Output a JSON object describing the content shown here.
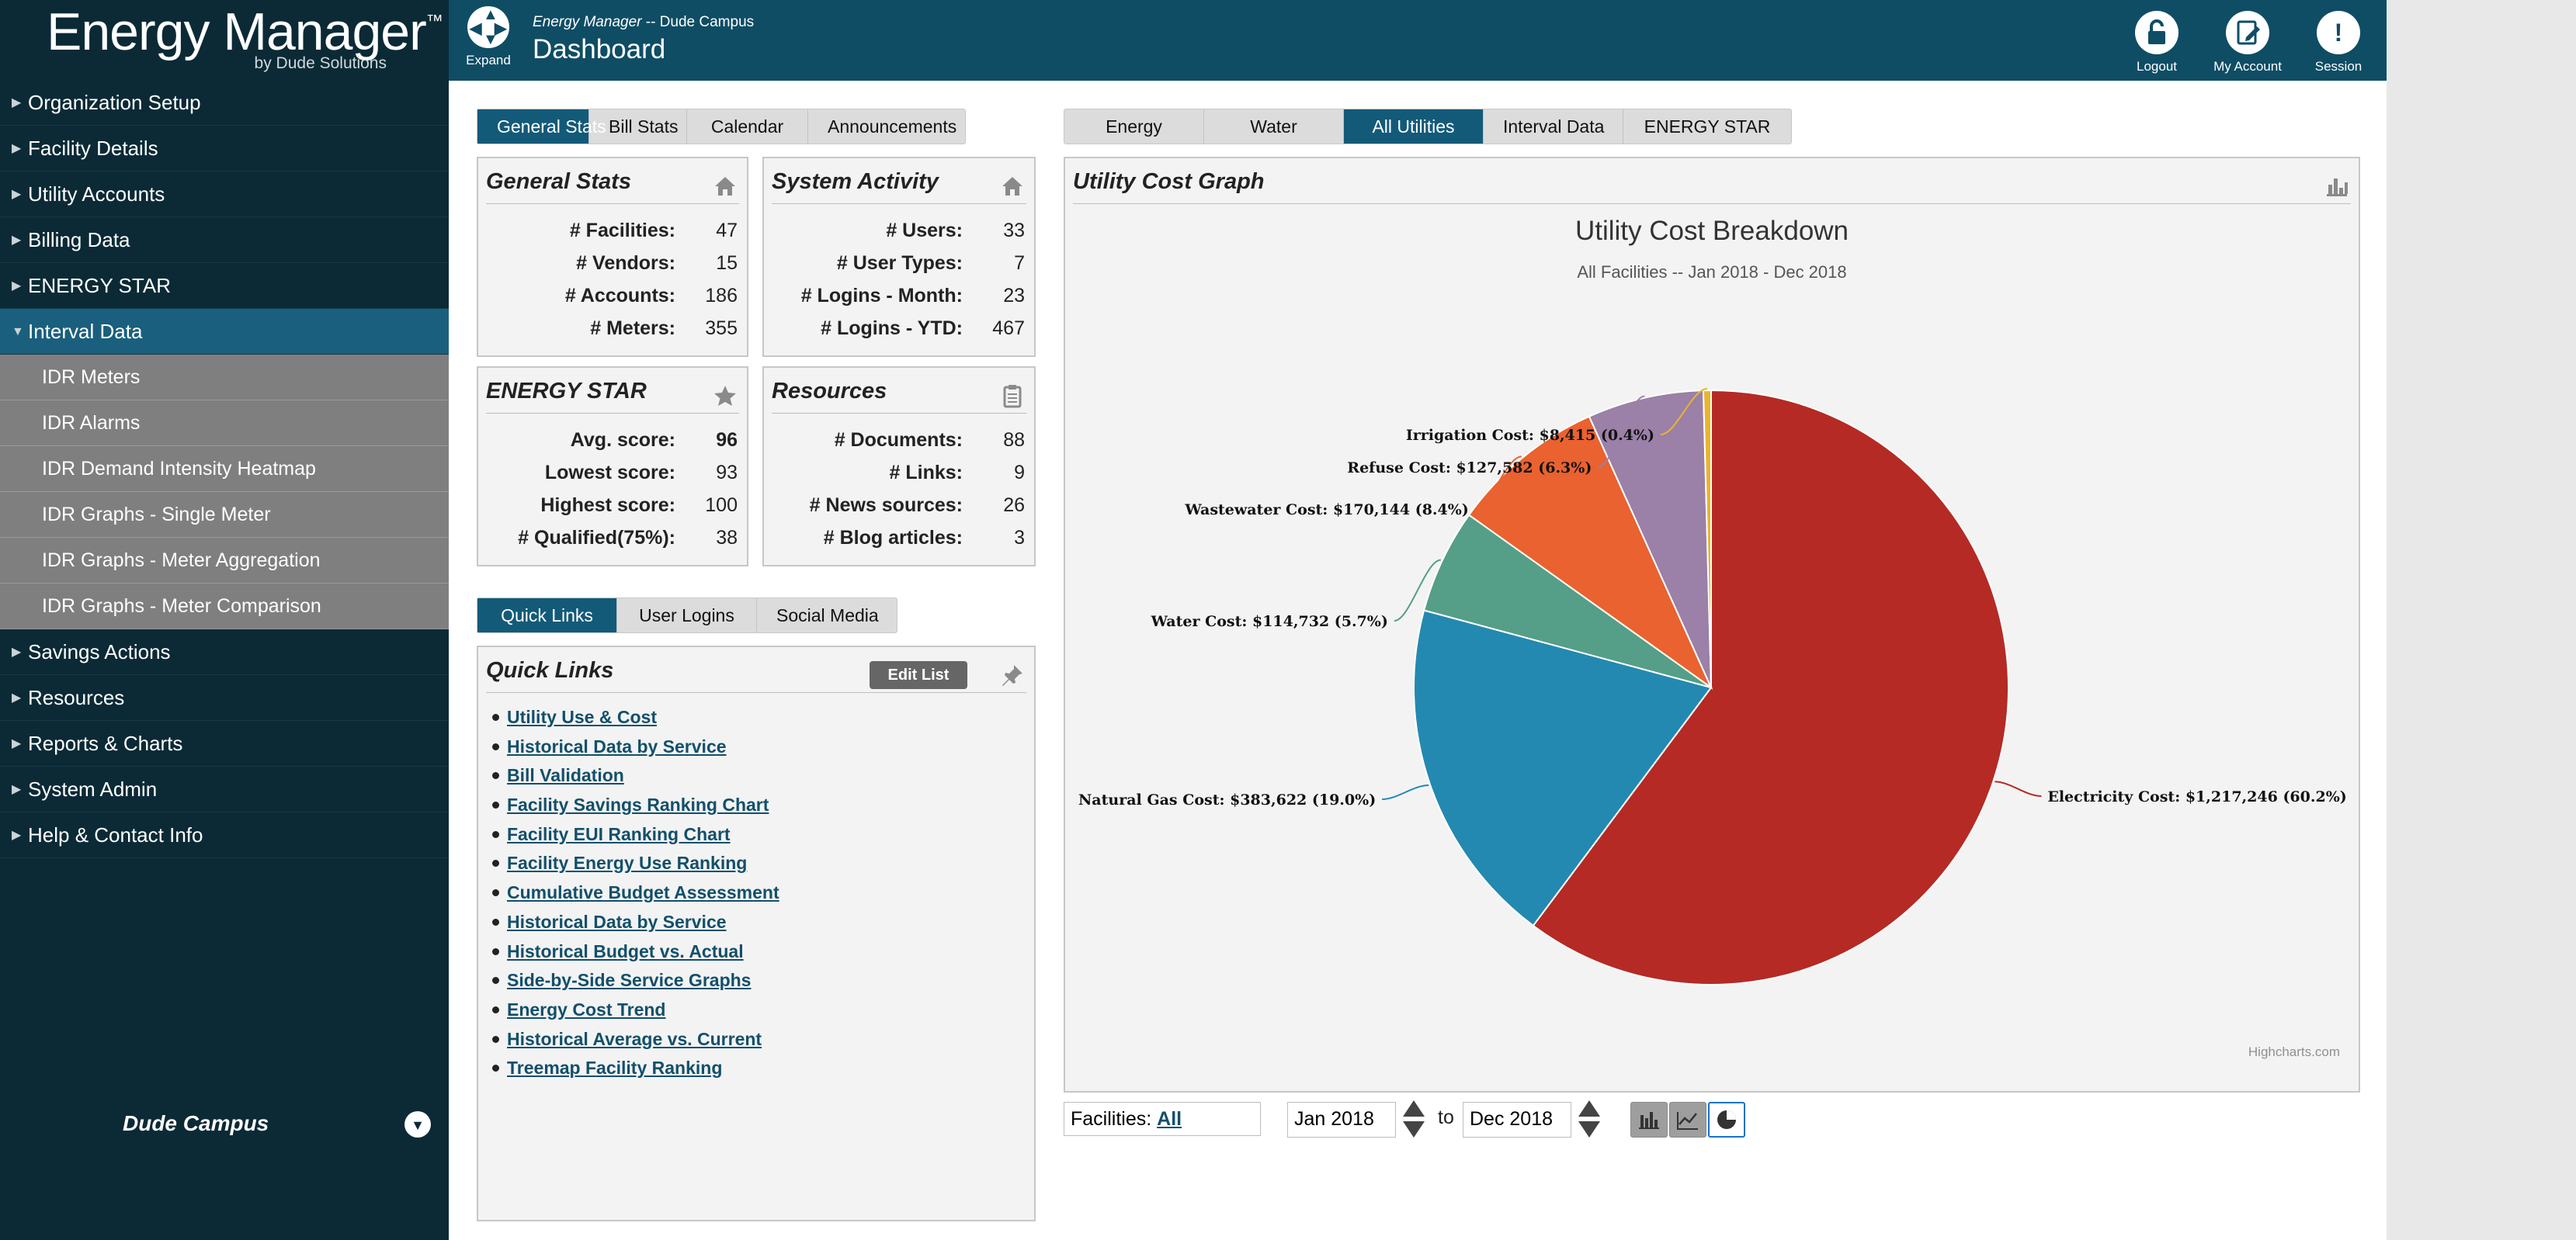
{
  "logo": {
    "brand": "Energy Manager",
    "tm": "™",
    "by": "by Dude Solutions"
  },
  "nav": [
    {
      "label": "Organization Setup",
      "type": "top"
    },
    {
      "label": "Facility Details",
      "type": "top"
    },
    {
      "label": "Utility Accounts",
      "type": "top"
    },
    {
      "label": "Billing Data",
      "type": "top"
    },
    {
      "label": "ENERGY STAR",
      "type": "top"
    },
    {
      "label": "Interval Data",
      "type": "active"
    },
    {
      "label": "IDR Meters",
      "type": "sub"
    },
    {
      "label": "IDR Alarms",
      "type": "sub"
    },
    {
      "label": "IDR Demand Intensity Heatmap",
      "type": "sub"
    },
    {
      "label": "IDR Graphs - Single Meter",
      "type": "sub"
    },
    {
      "label": "IDR Graphs - Meter Aggregation",
      "type": "sub"
    },
    {
      "label": "IDR Graphs - Meter Comparison",
      "type": "sub"
    },
    {
      "label": "Savings Actions",
      "type": "top"
    },
    {
      "label": "Resources",
      "type": "top"
    },
    {
      "label": "Reports & Charts",
      "type": "top"
    },
    {
      "label": "System Admin",
      "type": "top"
    },
    {
      "label": "Help & Contact Info",
      "type": "top"
    }
  ],
  "campus": {
    "name": "Dude Campus"
  },
  "header": {
    "expand": "Expand",
    "crumb_app": "Energy Manager",
    "crumb_rest": " -- Dude Campus",
    "title": "Dashboard",
    "logout": "Logout",
    "my_account": "My Account",
    "session": "Session"
  },
  "left_tabs": [
    "General Stats",
    "Bill Stats",
    "Calendar",
    "Announcements"
  ],
  "right_tabs": [
    "Energy",
    "Water",
    "All Utilities",
    "Interval Data",
    "ENERGY STAR"
  ],
  "link_tabs": [
    "Quick Links",
    "User Logins",
    "Social Media"
  ],
  "general_stats": {
    "title": "General Stats",
    "rows": [
      {
        "label": "# Facilities:",
        "value": "47"
      },
      {
        "label": "# Vendors:",
        "value": "15"
      },
      {
        "label": "# Accounts:",
        "value": "186"
      },
      {
        "label": "# Meters:",
        "value": "355"
      }
    ]
  },
  "system_activity": {
    "title": "System Activity",
    "rows": [
      {
        "label": "# Users:",
        "value": "33"
      },
      {
        "label": "# User Types:",
        "value": "7"
      },
      {
        "label": "# Logins - Month:",
        "value": "23"
      },
      {
        "label": "# Logins - YTD:",
        "value": "467"
      }
    ]
  },
  "energy_star": {
    "title": "ENERGY STAR",
    "rows": [
      {
        "label": "Avg. score:",
        "value": "96"
      },
      {
        "label": "Lowest score:",
        "value": "93"
      },
      {
        "label": "Highest score:",
        "value": "100"
      },
      {
        "label": "# Qualified(75%):",
        "value": "38"
      }
    ]
  },
  "resources": {
    "title": "Resources",
    "rows": [
      {
        "label": "# Documents:",
        "value": "88"
      },
      {
        "label": "# Links:",
        "value": "9"
      },
      {
        "label": "# News sources:",
        "value": "26"
      },
      {
        "label": "# Blog articles:",
        "value": "3"
      }
    ]
  },
  "quick_links": {
    "title": "Quick Links",
    "edit_label": "Edit List",
    "items": [
      "Utility Use & Cost",
      "Historical Data by Service",
      "Bill Validation",
      "Facility Savings Ranking Chart",
      "Facility EUI Ranking Chart",
      "Facility Energy Use Ranking",
      "Cumulative Budget Assessment",
      "Historical Data by Service",
      "Historical Budget vs. Actual",
      "Side-by-Side Service Graphs",
      "Energy Cost Trend",
      "Historical Average vs. Current",
      "Treemap Facility Ranking"
    ]
  },
  "graph_panel": {
    "title": "Utility Cost Graph",
    "credit": "Highcharts.com"
  },
  "controls": {
    "facilities_label": "Facilities:",
    "facilities_value": "All",
    "from": "Jan 2018",
    "to_label": "to",
    "to": "Dec 2018"
  },
  "chart_data": {
    "type": "pie",
    "title": "Utility Cost Breakdown",
    "subtitle": "All Facilities -- Jan 2018 - Dec 2018",
    "slices": [
      {
        "name": "Electricity Cost",
        "value": 1217246,
        "label": "Electricity Cost: $1,217,246 (60.2%)",
        "percent": 60.2,
        "color": "#b52a24"
      },
      {
        "name": "Natural Gas Cost",
        "value": 383622,
        "label": "Natural Gas Cost: $383,622 (19.0%)",
        "percent": 19.0,
        "color": "#2389b0"
      },
      {
        "name": "Water Cost",
        "value": 114732,
        "label": "Water Cost: $114,732 (5.7%)",
        "percent": 5.7,
        "color": "#559e87"
      },
      {
        "name": "Wastewater Cost",
        "value": 170144,
        "label": "Wastewater Cost: $170,144 (8.4%)",
        "percent": 8.4,
        "color": "#e9622f"
      },
      {
        "name": "Refuse Cost",
        "value": 127582,
        "label": "Refuse Cost: $127,582 (6.3%)",
        "percent": 6.3,
        "color": "#9b80a8"
      },
      {
        "name": "Irrigation Cost",
        "value": 8415,
        "label": "Irrigation Cost: $8,415 (0.4%)",
        "percent": 0.4,
        "color": "#e8b52c"
      }
    ]
  }
}
